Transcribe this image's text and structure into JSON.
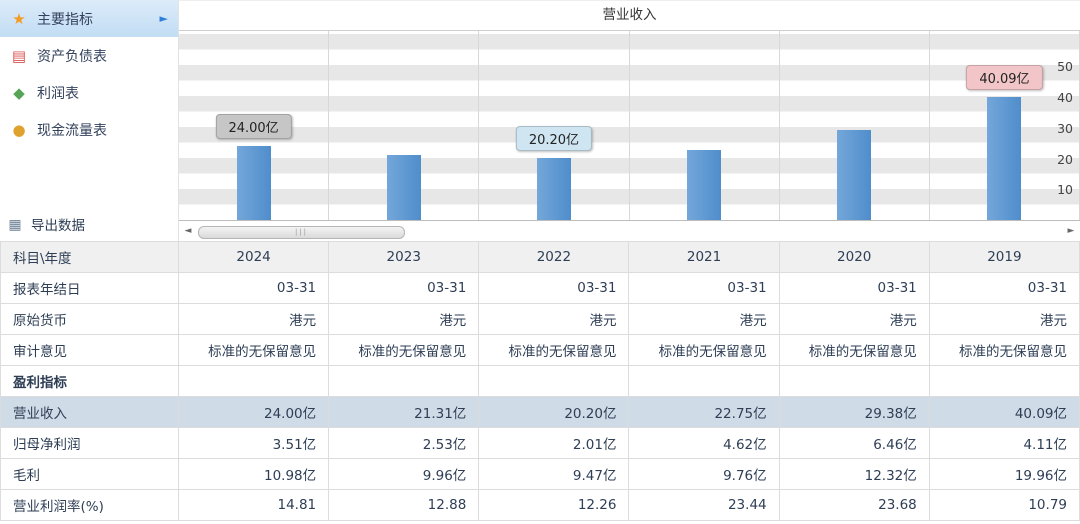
{
  "sidebar": {
    "items": [
      {
        "label": "主要指标",
        "icon": "compass-icon",
        "selected": true
      },
      {
        "label": "资产负债表",
        "icon": "document-icon",
        "selected": false
      },
      {
        "label": "利润表",
        "icon": "cube-icon",
        "selected": false
      },
      {
        "label": "现金流量表",
        "icon": "coins-icon",
        "selected": false
      }
    ],
    "export_label": "导出数据"
  },
  "chart_data": {
    "type": "bar",
    "title": "营业收入",
    "categories": [
      "2024",
      "2023",
      "2022",
      "2021",
      "2020",
      "2019"
    ],
    "values": [
      24.0,
      21.31,
      20.2,
      22.75,
      29.38,
      40.09
    ],
    "value_labels": [
      "24.00亿",
      "21.31亿",
      "20.20亿",
      "22.75亿",
      "29.38亿",
      "40.09亿"
    ],
    "visible_labels": [
      {
        "index": 0,
        "text": "24.00亿",
        "bg": "#c6c6c6"
      },
      {
        "index": 2,
        "text": "20.20亿",
        "bg": "#cfe6f2"
      },
      {
        "index": 5,
        "text": "40.09亿",
        "bg": "#f2c6c8"
      }
    ],
    "xlabel": "",
    "ylabel": "",
    "ylim": [
      0,
      62
    ],
    "yticks": [
      10,
      20,
      30,
      40,
      50
    ],
    "bar_color": "#5b96d2",
    "grid": "horizontal-bands",
    "legend_position": "none"
  },
  "scrollbar": {
    "left_arrow": "◄",
    "right_arrow": "►",
    "grip": "|||"
  },
  "table": {
    "header": [
      "科目\\年度",
      "2024",
      "2023",
      "2022",
      "2021",
      "2020",
      "2019"
    ],
    "rows": [
      {
        "label": "报表年结日",
        "style": "normal",
        "values": [
          "03-31",
          "03-31",
          "03-31",
          "03-31",
          "03-31",
          "03-31"
        ]
      },
      {
        "label": "原始货币",
        "style": "normal",
        "values": [
          "港元",
          "港元",
          "港元",
          "港元",
          "港元",
          "港元"
        ]
      },
      {
        "label": "审计意见",
        "style": "normal",
        "values": [
          "标准的无保留意见",
          "标准的无保留意见",
          "标准的无保留意见",
          "标准的无保留意见",
          "标准的无保留意见",
          "标准的无保留意见"
        ]
      },
      {
        "label": "盈利指标",
        "style": "section",
        "values": [
          "",
          "",
          "",
          "",
          "",
          ""
        ]
      },
      {
        "label": "营业收入",
        "style": "highlight",
        "values": [
          "24.00亿",
          "21.31亿",
          "20.20亿",
          "22.75亿",
          "29.38亿",
          "40.09亿"
        ]
      },
      {
        "label": "归母净利润",
        "style": "normal",
        "values": [
          "3.51亿",
          "2.53亿",
          "2.01亿",
          "4.62亿",
          "6.46亿",
          "4.11亿"
        ]
      },
      {
        "label": "毛利",
        "style": "normal",
        "values": [
          "10.98亿",
          "9.96亿",
          "9.47亿",
          "9.76亿",
          "12.32亿",
          "19.96亿"
        ]
      },
      {
        "label": "营业利润率(%)",
        "style": "normal",
        "values": [
          "14.81",
          "12.88",
          "12.26",
          "23.44",
          "23.68",
          "10.79"
        ]
      }
    ]
  },
  "ui_colors": {
    "bar": "#5b96d2",
    "selected_item_bg": "#c2ddf4",
    "highlight_row_bg": "#cfdbe6",
    "header_row_bg": "#f0f0f0",
    "band_gray": "#e7e7e7"
  }
}
